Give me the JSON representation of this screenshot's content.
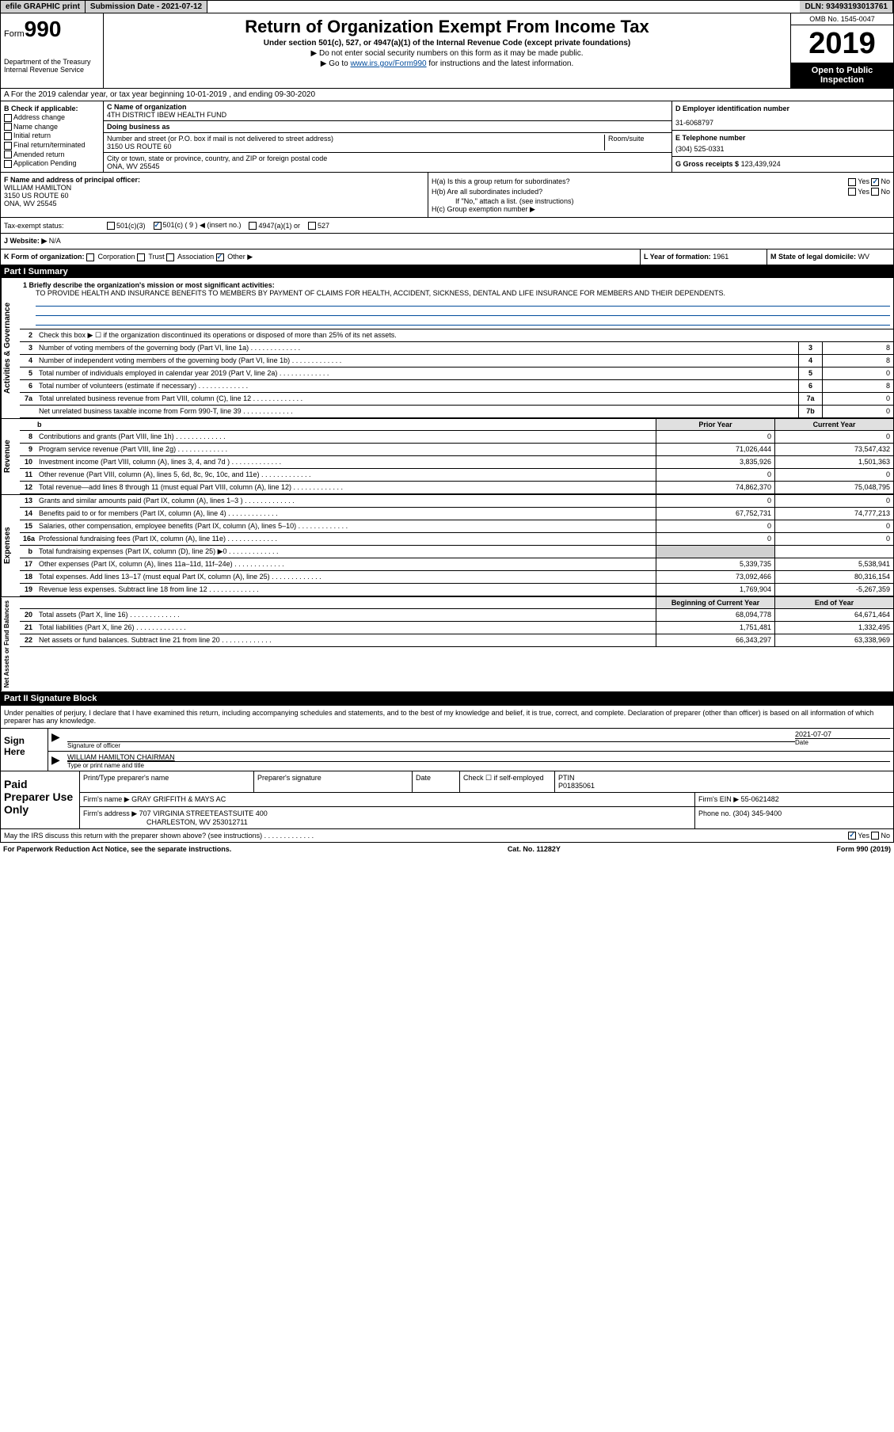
{
  "top": {
    "efile": "efile GRAPHIC print",
    "submission": "Submission Date - 2021-07-12",
    "dln": "DLN: 93493193013761"
  },
  "header": {
    "form_prefix": "Form",
    "form_num": "990",
    "dept": "Department of the Treasury\nInternal Revenue Service",
    "title": "Return of Organization Exempt From Income Tax",
    "subtitle": "Under section 501(c), 527, or 4947(a)(1) of the Internal Revenue Code (except private foundations)",
    "instr1": "▶ Do not enter social security numbers on this form as it may be made public.",
    "instr2_pre": "▶ Go to ",
    "instr2_link": "www.irs.gov/Form990",
    "instr2_post": " for instructions and the latest information.",
    "omb": "OMB No. 1545-0047",
    "year": "2019",
    "open": "Open to Public Inspection"
  },
  "rowA": "A For the 2019 calendar year, or tax year beginning 10-01-2019    , and ending 09-30-2020",
  "B": {
    "label": "B Check if applicable:",
    "opts": [
      "Address change",
      "Name change",
      "Initial return",
      "Final return/terminated",
      "Amended return",
      "Application Pending"
    ]
  },
  "C": {
    "name_label": "C Name of organization",
    "name": "4TH DISTRICT IBEW HEALTH FUND",
    "dba_label": "Doing business as",
    "dba": "",
    "addr_label": "Number and street (or P.O. box if mail is not delivered to street address)",
    "addr": "3150 US ROUTE 60",
    "room_label": "Room/suite",
    "city_label": "City or town, state or province, country, and ZIP or foreign postal code",
    "city": "ONA, WV  25545"
  },
  "D": {
    "ein_label": "D Employer identification number",
    "ein": "31-6068797",
    "phone_label": "E Telephone number",
    "phone": "(304) 525-0331",
    "gross_label": "G Gross receipts $",
    "gross": "123,439,924"
  },
  "F": {
    "label": "F  Name and address of principal officer:",
    "name": "WILLIAM HAMILTON",
    "addr1": "3150 US ROUTE 60",
    "addr2": "ONA, WV  25545"
  },
  "H": {
    "a": "H(a)  Is this a group return for subordinates?",
    "b": "H(b)  Are all subordinates included?",
    "b_note": "If \"No,\" attach a list. (see instructions)",
    "c": "H(c)  Group exemption number ▶"
  },
  "I": {
    "label": "Tax-exempt status:",
    "c9_insert": "501(c) ( 9 ) ◀ (insert no.)"
  },
  "J": {
    "label": "J Website: ▶",
    "val": "N/A"
  },
  "K": {
    "label": "K Form of organization:",
    "opts": [
      "Corporation",
      "Trust",
      "Association",
      "Other ▶"
    ]
  },
  "L": {
    "label": "L Year of formation:",
    "val": "1961"
  },
  "M": {
    "label": "M State of legal domicile:",
    "val": "WV"
  },
  "part1": {
    "title": "Part I     Summary",
    "q1": "1 Briefly describe the organization's mission or most significant activities:",
    "mission": "TO PROVIDE HEALTH AND INSURANCE BENEFITS TO MEMBERS BY PAYMENT OF CLAIMS FOR HEALTH, ACCIDENT, SICKNESS, DENTAL AND LIFE INSURANCE FOR MEMBERS AND THEIR DEPENDENTS.",
    "q2": "Check this box ▶ ☐  if the organization discontinued its operations or disposed of more than 25% of its net assets.",
    "gov_rows": [
      {
        "n": "3",
        "d": "Number of voting members of the governing body (Part VI, line 1a)",
        "box": "3",
        "v": "8"
      },
      {
        "n": "4",
        "d": "Number of independent voting members of the governing body (Part VI, line 1b)",
        "box": "4",
        "v": "8"
      },
      {
        "n": "5",
        "d": "Total number of individuals employed in calendar year 2019 (Part V, line 2a)",
        "box": "5",
        "v": "0"
      },
      {
        "n": "6",
        "d": "Total number of volunteers (estimate if necessary)",
        "box": "6",
        "v": "8"
      },
      {
        "n": "7a",
        "d": "Total unrelated business revenue from Part VIII, column (C), line 12",
        "box": "7a",
        "v": "0"
      },
      {
        "n": "",
        "d": "Net unrelated business taxable income from Form 990-T, line 39",
        "box": "7b",
        "v": "0"
      }
    ],
    "col_headers": {
      "prior": "Prior Year",
      "current": "Current Year"
    },
    "rev_rows": [
      {
        "n": "8",
        "d": "Contributions and grants (Part VIII, line 1h)",
        "p": "0",
        "c": "0"
      },
      {
        "n": "9",
        "d": "Program service revenue (Part VIII, line 2g)",
        "p": "71,026,444",
        "c": "73,547,432"
      },
      {
        "n": "10",
        "d": "Investment income (Part VIII, column (A), lines 3, 4, and 7d )",
        "p": "3,835,926",
        "c": "1,501,363"
      },
      {
        "n": "11",
        "d": "Other revenue (Part VIII, column (A), lines 5, 6d, 8c, 9c, 10c, and 11e)",
        "p": "0",
        "c": "0"
      },
      {
        "n": "12",
        "d": "Total revenue—add lines 8 through 11 (must equal Part VIII, column (A), line 12)",
        "p": "74,862,370",
        "c": "75,048,795"
      }
    ],
    "exp_rows": [
      {
        "n": "13",
        "d": "Grants and similar amounts paid (Part IX, column (A), lines 1–3 )",
        "p": "0",
        "c": "0"
      },
      {
        "n": "14",
        "d": "Benefits paid to or for members (Part IX, column (A), line 4)",
        "p": "67,752,731",
        "c": "74,777,213"
      },
      {
        "n": "15",
        "d": "Salaries, other compensation, employee benefits (Part IX, column (A), lines 5–10)",
        "p": "0",
        "c": "0"
      },
      {
        "n": "16a",
        "d": "Professional fundraising fees (Part IX, column (A), line 11e)",
        "p": "0",
        "c": "0"
      },
      {
        "n": "b",
        "d": "Total fundraising expenses (Part IX, column (D), line 25) ▶0",
        "p": "",
        "c": "",
        "shaded": true
      },
      {
        "n": "17",
        "d": "Other expenses (Part IX, column (A), lines 11a–11d, 11f–24e)",
        "p": "5,339,735",
        "c": "5,538,941"
      },
      {
        "n": "18",
        "d": "Total expenses. Add lines 13–17 (must equal Part IX, column (A), line 25)",
        "p": "73,092,466",
        "c": "80,316,154"
      },
      {
        "n": "19",
        "d": "Revenue less expenses. Subtract line 18 from line 12",
        "p": "1,769,904",
        "c": "-5,267,359"
      }
    ],
    "bal_headers": {
      "begin": "Beginning of Current Year",
      "end": "End of Year"
    },
    "bal_rows": [
      {
        "n": "20",
        "d": "Total assets (Part X, line 16)",
        "p": "68,094,778",
        "c": "64,671,464"
      },
      {
        "n": "21",
        "d": "Total liabilities (Part X, line 26)",
        "p": "1,751,481",
        "c": "1,332,495"
      },
      {
        "n": "22",
        "d": "Net assets or fund balances. Subtract line 21 from line 20",
        "p": "66,343,297",
        "c": "63,338,969"
      }
    ],
    "side_labels": {
      "gov": "Activities & Governance",
      "rev": "Revenue",
      "exp": "Expenses",
      "bal": "Net Assets or Fund Balances"
    }
  },
  "part2": {
    "title": "Part II     Signature Block",
    "decl": "Under penalties of perjury, I declare that I have examined this return, including accompanying schedules and statements, and to the best of my knowledge and belief, it is true, correct, and complete. Declaration of preparer (other than officer) is based on all information of which preparer has any knowledge.",
    "sign_here": "Sign Here",
    "sig_label": "Signature of officer",
    "date_label": "Date",
    "date_val": "2021-07-07",
    "officer": "WILLIAM HAMILTON  CHAIRMAN",
    "officer_label": "Type or print name and title",
    "paid": "Paid Preparer Use Only",
    "prep_name_label": "Print/Type preparer's name",
    "prep_sig_label": "Preparer's signature",
    "prep_date_label": "Date",
    "self_emp": "Check ☐ if self-employed",
    "ptin_label": "PTIN",
    "ptin": "P01835061",
    "firm_name_label": "Firm's name    ▶",
    "firm_name": "GRAY GRIFFITH & MAYS AC",
    "firm_ein_label": "Firm's EIN ▶",
    "firm_ein": "55-0621482",
    "firm_addr_label": "Firm's address ▶",
    "firm_addr": "707 VIRGINIA STREETEASTSUITE 400",
    "firm_city": "CHARLESTON, WV  253012711",
    "firm_phone_label": "Phone no.",
    "firm_phone": "(304) 345-9400",
    "discuss": "May the IRS discuss this return with the preparer shown above? (see instructions)"
  },
  "footer": {
    "pra": "For Paperwork Reduction Act Notice, see the separate instructions.",
    "cat": "Cat. No. 11282Y",
    "form": "Form 990 (2019)"
  }
}
